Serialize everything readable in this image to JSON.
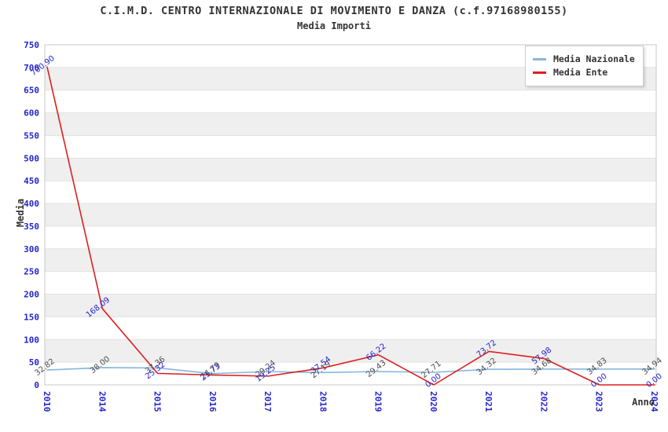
{
  "chart_data": {
    "type": "line",
    "title": "C.I.M.D. CENTRO INTERNAZIONALE DI MOVIMENTO E DANZA (c.f.97168980155)",
    "subtitle": "Media Importi",
    "xlabel": "Anno",
    "ylabel": "Media",
    "categories": [
      "2010",
      "2014",
      "2015",
      "2016",
      "2017",
      "2018",
      "2019",
      "2020",
      "2021",
      "2022",
      "2023",
      "2024"
    ],
    "series": [
      {
        "name": "Media Nazionale",
        "color": "#85b7dd",
        "label_color": "#4d4d4d",
        "values": [
          32.82,
          38.0,
          37.36,
          24.79,
          29.24,
          27.19,
          29.43,
          27.71,
          34.32,
          34.68,
          34.83,
          34.94
        ]
      },
      {
        "name": "Media Ente",
        "color": "#dd1f1f",
        "label_color": "#2424cc",
        "values": [
          700.9,
          168.09,
          25.32,
          21.73,
          19.25,
          37.54,
          66.22,
          0.0,
          73.72,
          57.98,
          0.0,
          0.0
        ]
      }
    ],
    "ylim": [
      0,
      750
    ],
    "ytick_step": 50,
    "grid": "banded-horizontal",
    "band_color": "#efefef",
    "gridline_color": "#e2e2e2",
    "border_color": "#c9c9c9",
    "tick_label_color": "#2424cc",
    "legend_position": "top-right",
    "point_label_decimals": 2
  }
}
